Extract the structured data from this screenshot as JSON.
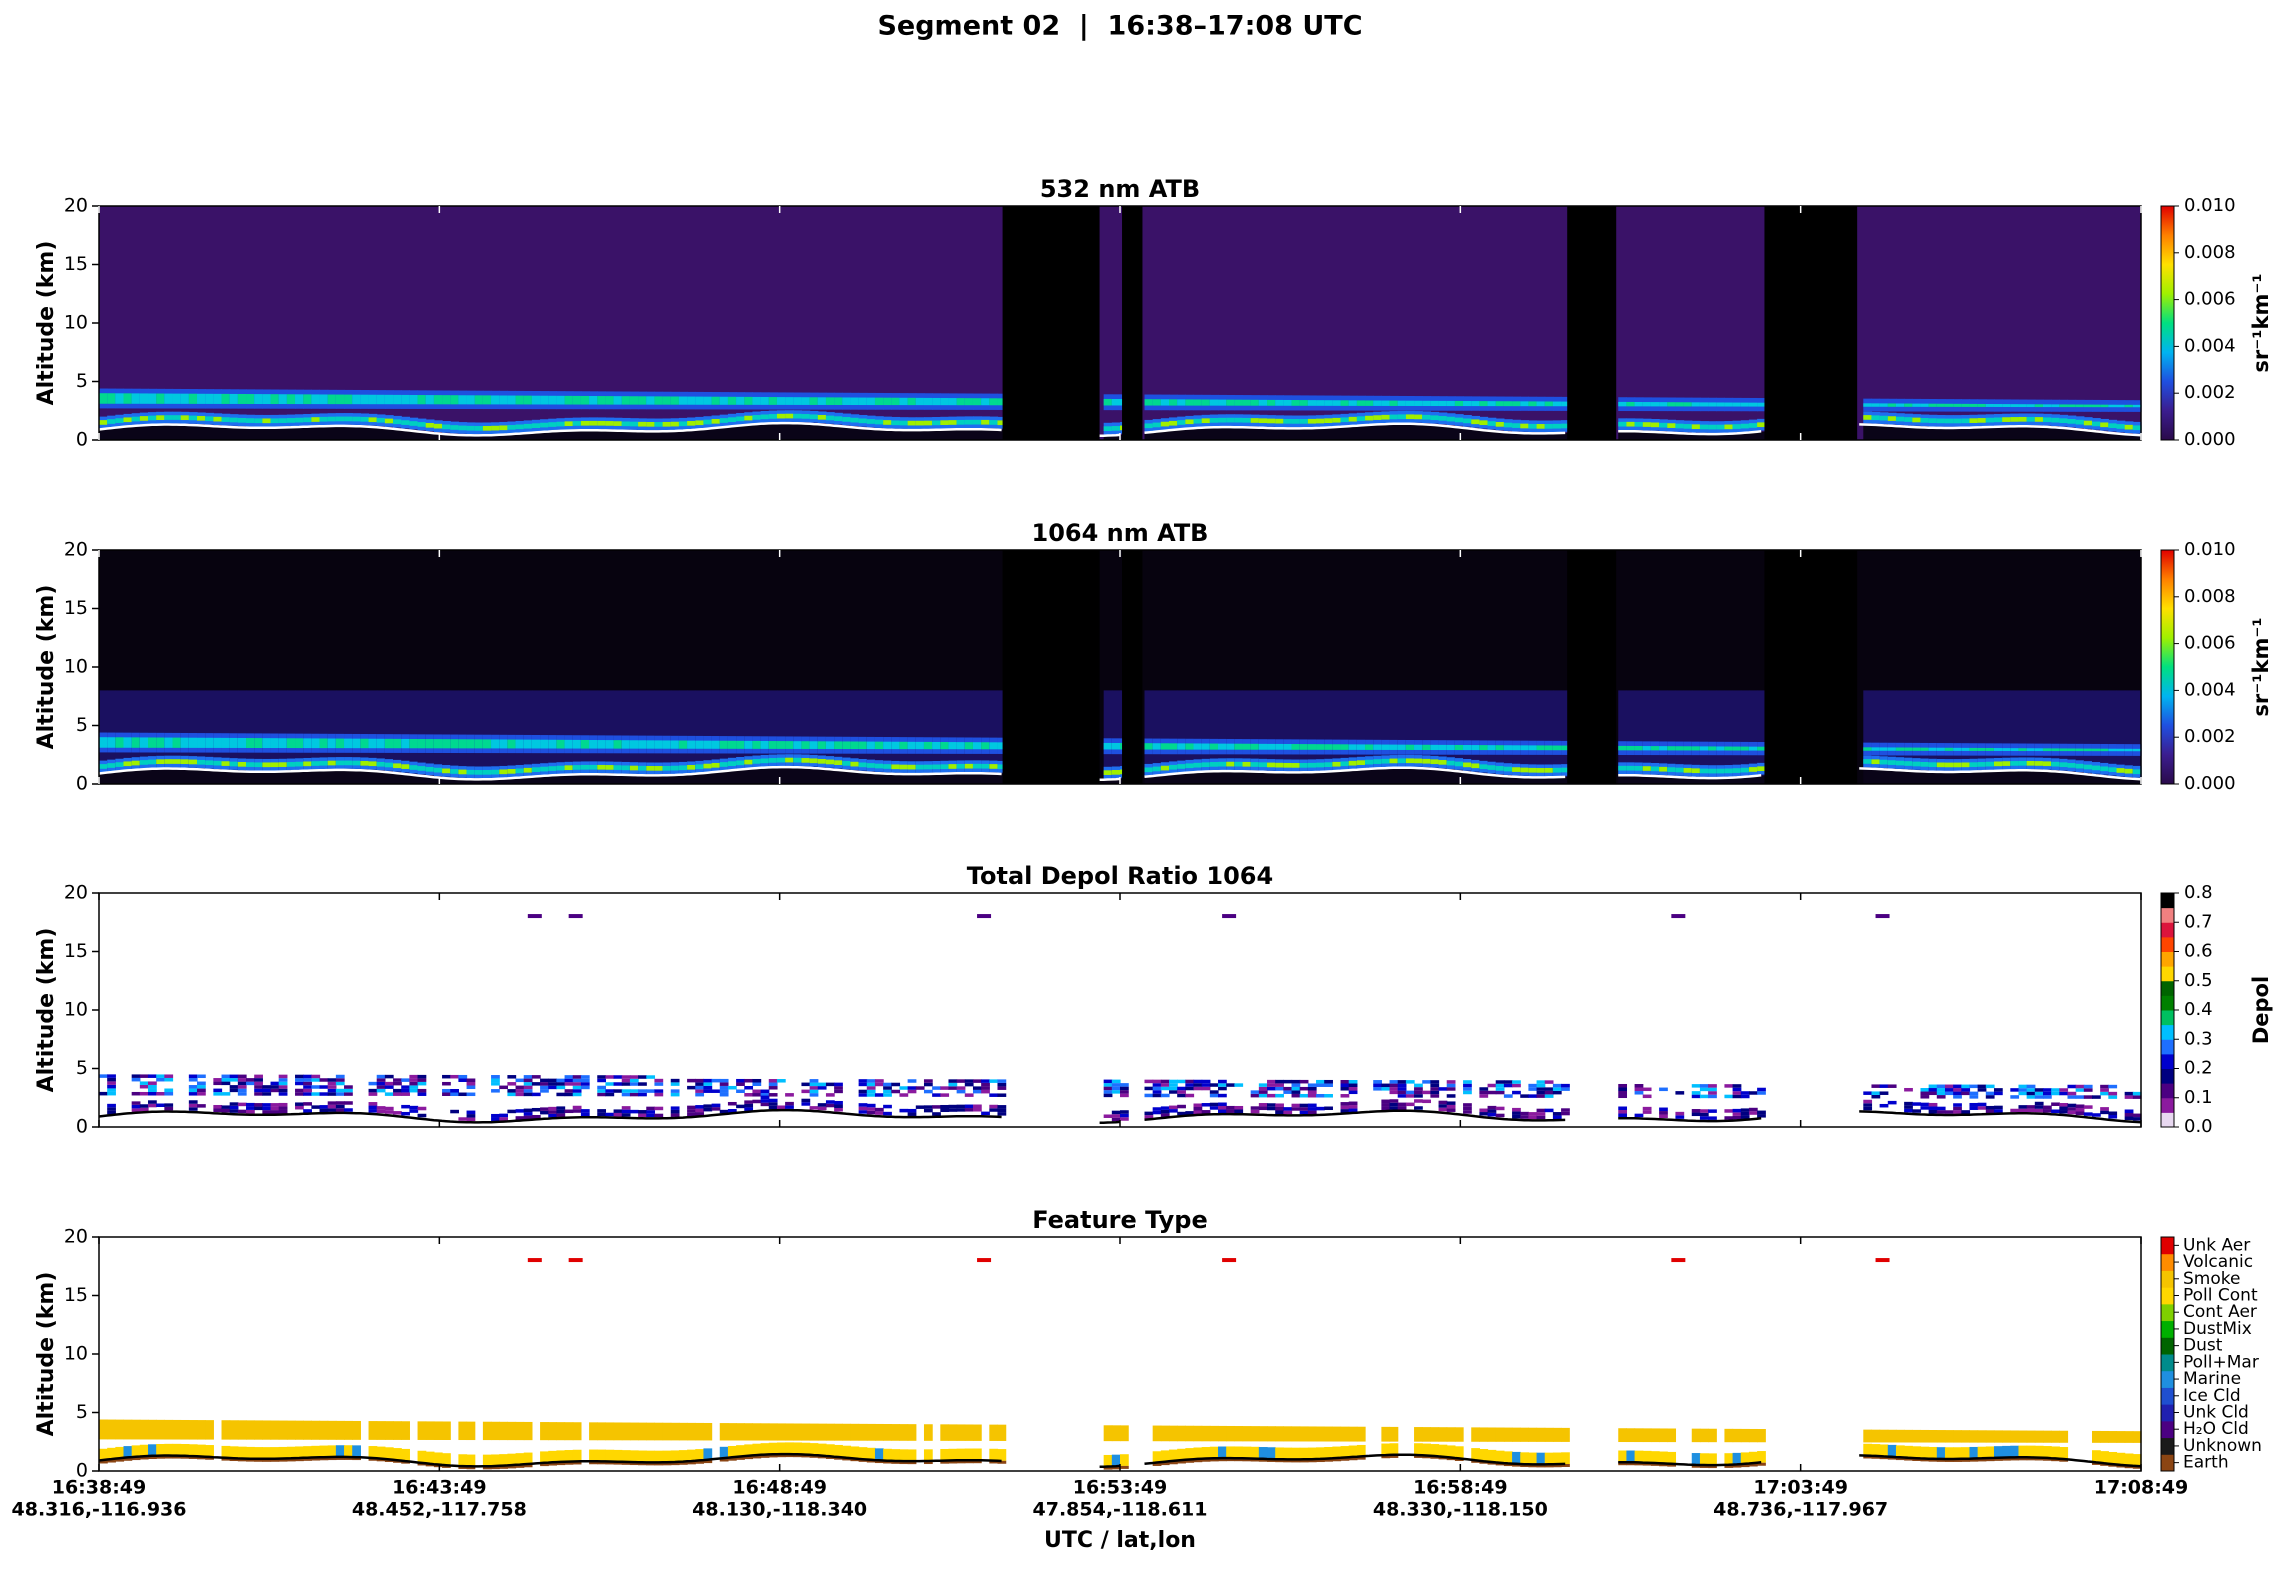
{
  "title": "Segment 02  |  16:38–17:08 UTC",
  "xlabel": "UTC / lat,lon",
  "chart_data": [
    {
      "type": "heatmap",
      "title": "532 nm ATB",
      "ylabel": "Altitude (km)",
      "ylim": [
        0,
        20
      ],
      "yticks": [
        0,
        5,
        10,
        15,
        20
      ],
      "colorbar_label": "sr⁻¹km⁻¹",
      "clim": [
        0,
        0.01
      ],
      "cticks": [
        {
          "value": 0,
          "label": "0.000"
        },
        {
          "value": 0.002,
          "label": "0.002"
        },
        {
          "value": 0.004,
          "label": "0.004"
        },
        {
          "value": 0.006,
          "label": "0.006"
        },
        {
          "value": 0.008,
          "label": "0.008"
        },
        {
          "value": 0.01,
          "label": "0.010"
        }
      ],
      "colormap": [
        "#2a0a4a",
        "#3b1d8f",
        "#1f4fe0",
        "#00b4f0",
        "#00e080",
        "#a0f000",
        "#ffe000",
        "#ff8000",
        "#e00000"
      ]
    },
    {
      "type": "heatmap",
      "title": "1064 nm ATB",
      "ylabel": "Altitude (km)",
      "ylim": [
        0,
        20
      ],
      "yticks": [
        0,
        5,
        10,
        15,
        20
      ],
      "colorbar_label": "sr⁻¹km⁻¹",
      "clim": [
        0,
        0.01
      ],
      "cticks": [
        {
          "value": 0,
          "label": "0.000"
        },
        {
          "value": 0.002,
          "label": "0.002"
        },
        {
          "value": 0.004,
          "label": "0.004"
        },
        {
          "value": 0.006,
          "label": "0.006"
        },
        {
          "value": 0.008,
          "label": "0.008"
        },
        {
          "value": 0.01,
          "label": "0.010"
        }
      ],
      "colormap": [
        "#2a0a4a",
        "#3b1d8f",
        "#1f4fe0",
        "#00b4f0",
        "#00e080",
        "#a0f000",
        "#ffe000",
        "#ff8000",
        "#e00000"
      ]
    },
    {
      "type": "heatmap",
      "title": "Total Depol Ratio 1064",
      "ylabel": "Altitude (km)",
      "ylim": [
        0,
        20
      ],
      "yticks": [
        0,
        5,
        10,
        15,
        20
      ],
      "colorbar_label": "Depol",
      "clim": [
        0,
        0.8
      ],
      "cticks": [
        {
          "value": 0,
          "label": "0.0"
        },
        {
          "value": 0.1,
          "label": "0.1"
        },
        {
          "value": 0.2,
          "label": "0.2"
        },
        {
          "value": 0.3,
          "label": "0.3"
        },
        {
          "value": 0.4,
          "label": "0.4"
        },
        {
          "value": 0.5,
          "label": "0.5"
        },
        {
          "value": 0.6,
          "label": "0.6"
        },
        {
          "value": 0.7,
          "label": "0.7"
        },
        {
          "value": 0.8,
          "label": "0.8"
        }
      ],
      "colormap": [
        "#e8d8f0",
        "#8b1a9e",
        "#4b0082",
        "#000080",
        "#0000cd",
        "#1e6fff",
        "#00bfff",
        "#00c060",
        "#008000",
        "#006400",
        "#ffd700",
        "#ffa500",
        "#ff4500",
        "#dc143c",
        "#f08080",
        "#000000"
      ]
    },
    {
      "type": "heatmap",
      "title": "Feature Type",
      "ylabel": "Altitude (km)",
      "ylim": [
        0,
        20
      ],
      "yticks": [
        0,
        5,
        10,
        15,
        20
      ],
      "classes": [
        {
          "name": "Earth",
          "color": "#8b4513"
        },
        {
          "name": "Unknown",
          "color": "#1a1a1a"
        },
        {
          "name": "H₂O Cld",
          "color": "#4b0082"
        },
        {
          "name": "Unk Cld",
          "color": "#2020b0"
        },
        {
          "name": "Ice Cld",
          "color": "#1f4fd0"
        },
        {
          "name": "Marine",
          "color": "#1f8fe0"
        },
        {
          "name": "Poll+Mar",
          "color": "#008b8b"
        },
        {
          "name": "Dust",
          "color": "#006400"
        },
        {
          "name": "DustMix",
          "color": "#00b000"
        },
        {
          "name": "Cont Aer",
          "color": "#7fd000"
        },
        {
          "name": "Poll Cont",
          "color": "#ffd700"
        },
        {
          "name": "Smoke",
          "color": "#f5c400"
        },
        {
          "name": "Volcanic",
          "color": "#ff8c00"
        },
        {
          "name": "Unk Aer",
          "color": "#e00000"
        }
      ],
      "xlim": [
        59929,
        61729
      ],
      "xticks": [
        {
          "value": 59929,
          "label": "16:38:49",
          "latlon": "48.316,-116.936"
        },
        {
          "value": 60229,
          "label": "16:43:49",
          "latlon": "48.452,-117.758"
        },
        {
          "value": 60529,
          "label": "16:48:49",
          "latlon": "48.130,-118.340"
        },
        {
          "value": 60829,
          "label": "16:53:49",
          "latlon": "47.854,-118.611"
        },
        {
          "value": 61129,
          "label": "16:58:49",
          "latlon": "48.330,-118.150"
        },
        {
          "value": 61429,
          "label": "17:03:49",
          "latlon": "48.736,-117.967"
        },
        {
          "value": 61729,
          "label": "17:08:49",
          "latlon": ""
        }
      ]
    }
  ]
}
